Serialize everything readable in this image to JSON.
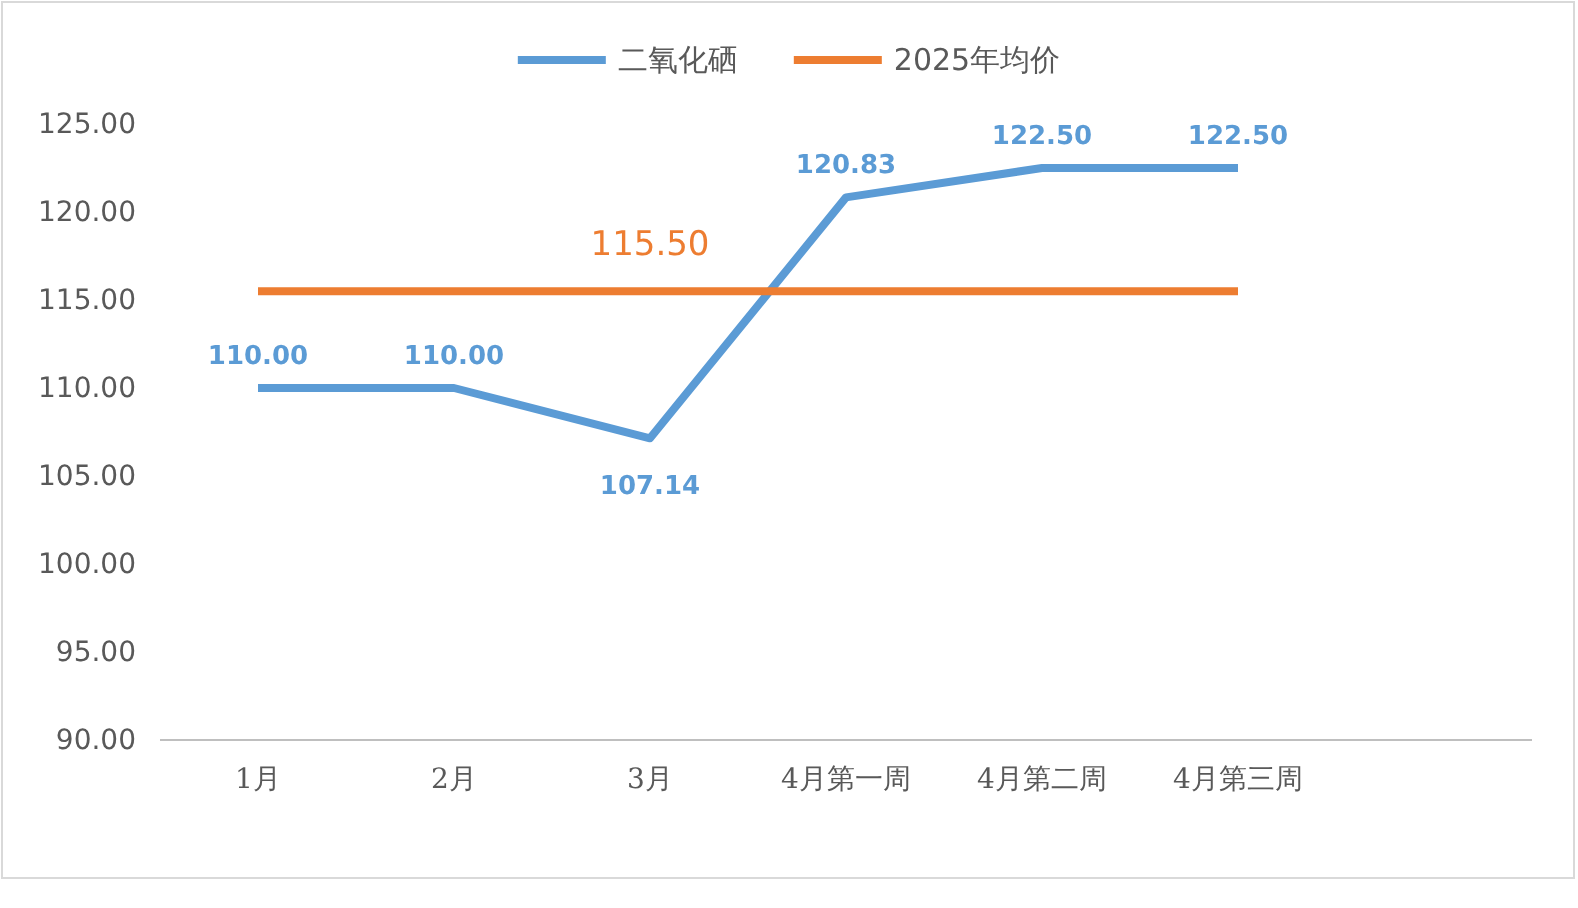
{
  "chart_data": {
    "type": "line",
    "categories": [
      "1月",
      "2月",
      "3月",
      "4月第一周",
      "4月第二周",
      "4月第三周",
      null
    ],
    "series": [
      {
        "name": "二氧化硒",
        "color": "#5b9bd5",
        "values": [
          110.0,
          110.0,
          107.14,
          120.83,
          122.5,
          122.5,
          null
        ],
        "value_labels": [
          "110.00",
          "110.00",
          "107.14",
          "120.83",
          "122.50",
          "122.50",
          null
        ]
      },
      {
        "name": "2025年均价",
        "color": "#ed7d31",
        "values": [
          115.5,
          115.5,
          115.5,
          115.5,
          115.5,
          115.5,
          null
        ],
        "value_labels": [
          null,
          null,
          "115.50",
          null,
          null,
          null,
          null
        ]
      }
    ],
    "ylim": [
      90,
      125
    ],
    "yticks": [
      {
        "value": 90,
        "label": "90.00"
      },
      {
        "value": 95,
        "label": "95.00"
      },
      {
        "value": 100,
        "label": "100.00"
      },
      {
        "value": 105,
        "label": "105.00"
      },
      {
        "value": 110,
        "label": "110.00"
      },
      {
        "value": 115,
        "label": "115.00"
      },
      {
        "value": 120,
        "label": "120.00"
      },
      {
        "value": 125,
        "label": "125.00"
      }
    ],
    "grid": false,
    "legend": "top",
    "marker": "none",
    "line_style": "solid"
  }
}
